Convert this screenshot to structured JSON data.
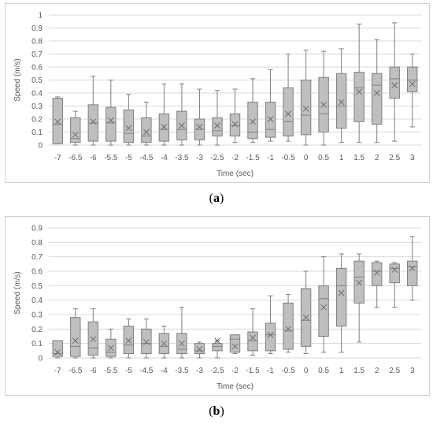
{
  "chart_data": [
    {
      "type": "boxplot",
      "panel": "a",
      "caption_letter": "a",
      "ylabel": "Speed (m/s)",
      "xlabel": "Time (sec)",
      "ylim": [
        0,
        1
      ],
      "yticks": [
        0,
        0.1,
        0.2,
        0.3,
        0.4,
        0.5,
        0.6,
        0.7,
        0.8,
        0.9,
        1
      ],
      "ytick_labels": [
        "0",
        "0.1",
        "0.2",
        "0.3",
        "0.4",
        "0.5",
        "0.6",
        "0.7",
        "0.8",
        "0.9",
        "1"
      ],
      "categories": [
        "-7",
        "-6.5",
        "-6",
        "-5.5",
        "-5",
        "-4.5",
        "-4",
        "-3.5",
        "-3",
        "-2.5",
        "-2",
        "-1.5",
        "-1",
        "-0.5",
        "0",
        "0.5",
        "1",
        "1.5",
        "2",
        "2.5",
        "3"
      ],
      "grid": true,
      "box_color": "#bfbfbf",
      "line_color": "#7f7f7f",
      "boxes": [
        {
          "min": 0.01,
          "q1": 0.01,
          "median": 0.16,
          "q3": 0.36,
          "max": 0.37,
          "mean": 0.18
        },
        {
          "min": 0.0,
          "q1": 0.02,
          "median": 0.05,
          "q3": 0.21,
          "max": 0.26,
          "mean": 0.08
        },
        {
          "min": 0.0,
          "q1": 0.03,
          "median": 0.17,
          "q3": 0.31,
          "max": 0.53,
          "mean": 0.18
        },
        {
          "min": 0.0,
          "q1": 0.03,
          "median": 0.17,
          "q3": 0.29,
          "max": 0.5,
          "mean": 0.19
        },
        {
          "min": 0.0,
          "q1": 0.02,
          "median": 0.09,
          "q3": 0.27,
          "max": 0.39,
          "mean": 0.13
        },
        {
          "min": 0.0,
          "q1": 0.02,
          "median": 0.07,
          "q3": 0.21,
          "max": 0.33,
          "mean": 0.1
        },
        {
          "min": 0.0,
          "q1": 0.03,
          "median": 0.12,
          "q3": 0.24,
          "max": 0.47,
          "mean": 0.14
        },
        {
          "min": 0.0,
          "q1": 0.04,
          "median": 0.12,
          "q3": 0.26,
          "max": 0.47,
          "mean": 0.15
        },
        {
          "min": 0.0,
          "q1": 0.04,
          "median": 0.12,
          "q3": 0.2,
          "max": 0.43,
          "mean": 0.14
        },
        {
          "min": 0.0,
          "q1": 0.07,
          "median": 0.11,
          "q3": 0.21,
          "max": 0.42,
          "mean": 0.15
        },
        {
          "min": 0.02,
          "q1": 0.07,
          "median": 0.15,
          "q3": 0.24,
          "max": 0.43,
          "mean": 0.16
        },
        {
          "min": 0.02,
          "q1": 0.05,
          "median": 0.1,
          "q3": 0.33,
          "max": 0.51,
          "mean": 0.18
        },
        {
          "min": 0.03,
          "q1": 0.06,
          "median": 0.12,
          "q3": 0.33,
          "max": 0.58,
          "mean": 0.2
        },
        {
          "min": 0.03,
          "q1": 0.07,
          "median": 0.18,
          "q3": 0.44,
          "max": 0.7,
          "mean": 0.24
        },
        {
          "min": 0.0,
          "q1": 0.08,
          "median": 0.23,
          "q3": 0.5,
          "max": 0.73,
          "mean": 0.28
        },
        {
          "min": 0.0,
          "q1": 0.1,
          "median": 0.24,
          "q3": 0.52,
          "max": 0.72,
          "mean": 0.31
        },
        {
          "min": 0.02,
          "q1": 0.13,
          "median": 0.3,
          "q3": 0.55,
          "max": 0.74,
          "mean": 0.33
        },
        {
          "min": 0.02,
          "q1": 0.18,
          "median": 0.44,
          "q3": 0.56,
          "max": 0.93,
          "mean": 0.41
        },
        {
          "min": 0.02,
          "q1": 0.16,
          "median": 0.46,
          "q3": 0.55,
          "max": 0.81,
          "mean": 0.4
        },
        {
          "min": 0.03,
          "q1": 0.36,
          "median": 0.51,
          "q3": 0.6,
          "max": 0.94,
          "mean": 0.46
        },
        {
          "min": 0.14,
          "q1": 0.41,
          "median": 0.5,
          "q3": 0.6,
          "max": 0.7,
          "mean": 0.47
        }
      ]
    },
    {
      "type": "boxplot",
      "panel": "b",
      "caption_letter": "b",
      "ylabel": "Speed (m/s)",
      "xlabel": "Time (sec)",
      "ylim": [
        0,
        0.9
      ],
      "yticks": [
        0,
        0.1,
        0.2,
        0.3,
        0.4,
        0.5,
        0.6,
        0.7,
        0.8,
        0.9
      ],
      "ytick_labels": [
        "0",
        "0.1",
        "0.2",
        "0.3",
        "0.4",
        "0.5",
        "0.6",
        "0.7",
        "0.8",
        "0.9"
      ],
      "categories": [
        "-7",
        "-6.5",
        "-6",
        "-5.5",
        "-5",
        "-4.5",
        "-4",
        "-3.5",
        "-3",
        "-2.5",
        "-2",
        "-1.5",
        "-1",
        "-0.5",
        "0",
        "0.5",
        "1",
        "1.5",
        "2",
        "2.5",
        "3"
      ],
      "grid": true,
      "box_color": "#bfbfbf",
      "line_color": "#7f7f7f",
      "boxes": [
        {
          "min": 0.0,
          "q1": 0.01,
          "median": 0.03,
          "q3": 0.12,
          "max": 0.12,
          "mean": 0.04
        },
        {
          "min": 0.0,
          "q1": 0.01,
          "median": 0.08,
          "q3": 0.28,
          "max": 0.34,
          "mean": 0.12
        },
        {
          "min": 0.0,
          "q1": 0.02,
          "median": 0.07,
          "q3": 0.25,
          "max": 0.34,
          "mean": 0.13
        },
        {
          "min": 0.0,
          "q1": 0.01,
          "median": 0.04,
          "q3": 0.13,
          "max": 0.2,
          "mean": 0.07
        },
        {
          "min": 0.0,
          "q1": 0.03,
          "median": 0.09,
          "q3": 0.22,
          "max": 0.27,
          "mean": 0.12
        },
        {
          "min": 0.0,
          "q1": 0.03,
          "median": 0.1,
          "q3": 0.2,
          "max": 0.27,
          "mean": 0.11
        },
        {
          "min": 0.0,
          "q1": 0.03,
          "median": 0.08,
          "q3": 0.17,
          "max": 0.22,
          "mean": 0.1
        },
        {
          "min": 0.0,
          "q1": 0.03,
          "median": 0.06,
          "q3": 0.17,
          "max": 0.35,
          "mean": 0.1
        },
        {
          "min": 0.0,
          "q1": 0.03,
          "median": 0.05,
          "q3": 0.1,
          "max": 0.11,
          "mean": 0.06
        },
        {
          "min": 0.0,
          "q1": 0.05,
          "median": 0.08,
          "q3": 0.1,
          "max": 0.12,
          "mean": 0.12
        },
        {
          "min": 0.03,
          "q1": 0.04,
          "median": 0.13,
          "q3": 0.16,
          "max": 0.16,
          "mean": 0.08
        },
        {
          "min": 0.02,
          "q1": 0.05,
          "median": 0.12,
          "q3": 0.18,
          "max": 0.34,
          "mean": 0.14
        },
        {
          "min": 0.03,
          "q1": 0.05,
          "median": 0.16,
          "q3": 0.24,
          "max": 0.43,
          "mean": 0.16
        },
        {
          "min": 0.04,
          "q1": 0.06,
          "median": 0.19,
          "q3": 0.38,
          "max": 0.44,
          "mean": 0.2
        },
        {
          "min": 0.03,
          "q1": 0.08,
          "median": 0.26,
          "q3": 0.48,
          "max": 0.6,
          "mean": 0.28
        },
        {
          "min": 0.04,
          "q1": 0.15,
          "median": 0.41,
          "q3": 0.5,
          "max": 0.7,
          "mean": 0.35
        },
        {
          "min": 0.04,
          "q1": 0.22,
          "median": 0.5,
          "q3": 0.62,
          "max": 0.72,
          "mean": 0.45
        },
        {
          "min": 0.11,
          "q1": 0.38,
          "median": 0.56,
          "q3": 0.67,
          "max": 0.72,
          "mean": 0.52
        },
        {
          "min": 0.35,
          "q1": 0.5,
          "median": 0.6,
          "q3": 0.66,
          "max": 0.67,
          "mean": 0.59
        },
        {
          "min": 0.35,
          "q1": 0.52,
          "median": 0.62,
          "q3": 0.65,
          "max": 0.66,
          "mean": 0.61
        },
        {
          "min": 0.4,
          "q1": 0.5,
          "median": 0.63,
          "q3": 0.67,
          "max": 0.84,
          "mean": 0.62
        }
      ]
    }
  ]
}
